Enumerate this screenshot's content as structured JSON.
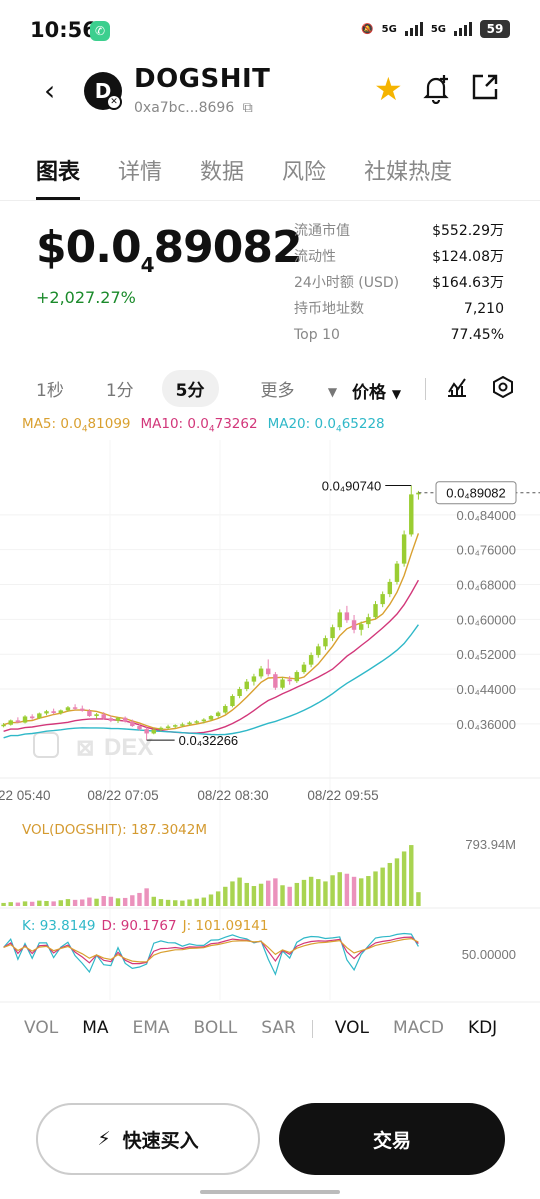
{
  "status_bar": {
    "time": "10:56",
    "battery": "59",
    "net1": "5G",
    "net2": "5G"
  },
  "header": {
    "title": "DOGSHIT",
    "avatar_letter": "D",
    "address": "0xa7bc...8696",
    "icons": [
      "back-icon",
      "copy-icon",
      "star-icon",
      "bell-add-icon",
      "share-icon"
    ],
    "star_color": "#f5b400"
  },
  "tabs": [
    "图表",
    "详情",
    "数据",
    "风险",
    "社媒热度"
  ],
  "price": {
    "prefix": "$0.0",
    "zeros": "4",
    "digits": "89082",
    "change": "+2,027.27%",
    "change_color": "#1a8a2a"
  },
  "stats": [
    {
      "label": "流通市值",
      "value": "$552.29万"
    },
    {
      "label": "流动性",
      "value": "$124.08万"
    },
    {
      "label": "24小时额 (USD)",
      "value": "$164.63万"
    },
    {
      "label": "持币地址数",
      "value": "7,210"
    },
    {
      "label": "Top 10",
      "value": "77.45%"
    }
  ],
  "intervals": [
    "1秒",
    "1分",
    "5分",
    "更多"
  ],
  "price_selector": "价格",
  "ma_legend": {
    "ma5": {
      "label": "MA5:",
      "prefix": "0.0",
      "sub": "4",
      "digits": "81099",
      "color": "#d9a030"
    },
    "ma10": {
      "label": "MA10:",
      "prefix": "0.0",
      "sub": "4",
      "digits": "73262",
      "color": "#d2377a"
    },
    "ma20": {
      "label": "MA20:",
      "prefix": "0.0",
      "sub": "4",
      "digits": "65228",
      "color": "#2fb8c8"
    }
  },
  "chart_data": {
    "type": "candlestick",
    "y_ticks": [
      "0.0₄84000",
      "0.0₄76000",
      "0.0₄68000",
      "0.0₄60000",
      "0.0₄52000",
      "0.0₄44000",
      "0.0₄36000"
    ],
    "ylim": [
      30000,
      92000
    ],
    "x_ticks": [
      "22 05:40",
      "08/22 07:05",
      "08/22 08:30",
      "08/22 09:55"
    ],
    "high_label": "0.0₄90740",
    "high_value": 90740,
    "low_label": "0.0₄32266",
    "low_value": 32266,
    "last_label": "0.0₄89082",
    "last_value": 89082,
    "watermark": "DEX",
    "up_color": "#9acd32",
    "down_color": "#e87fb0",
    "candles": [
      [
        35500,
        36200,
        35200,
        35800
      ],
      [
        35800,
        37000,
        35600,
        36800
      ],
      [
        36800,
        37500,
        36400,
        36300
      ],
      [
        36300,
        38000,
        36100,
        37700
      ],
      [
        37700,
        38200,
        37000,
        37300
      ],
      [
        37300,
        38600,
        37100,
        38400
      ],
      [
        38400,
        39200,
        38000,
        38900
      ],
      [
        38900,
        39500,
        38200,
        38500
      ],
      [
        38500,
        39300,
        38100,
        39100
      ],
      [
        39100,
        40100,
        38800,
        39800
      ],
      [
        39800,
        40500,
        39200,
        39500
      ],
      [
        39500,
        40200,
        38800,
        39000
      ],
      [
        39000,
        39400,
        37600,
        37800
      ],
      [
        37800,
        38500,
        37200,
        38200
      ],
      [
        38200,
        38700,
        37000,
        37300
      ],
      [
        37300,
        37900,
        36400,
        36700
      ],
      [
        36700,
        37600,
        36200,
        37400
      ],
      [
        37400,
        37700,
        36300,
        36500
      ],
      [
        36500,
        37000,
        35300,
        35500
      ],
      [
        35500,
        36100,
        34500,
        34800
      ],
      [
        34800,
        35200,
        32266,
        33800
      ],
      [
        33800,
        35000,
        33600,
        34700
      ],
      [
        34700,
        35400,
        34300,
        35100
      ],
      [
        35100,
        35800,
        34700,
        35400
      ],
      [
        35400,
        35900,
        35000,
        35700
      ],
      [
        35700,
        36300,
        35300,
        35900
      ],
      [
        35900,
        36600,
        35600,
        36300
      ],
      [
        36300,
        36900,
        35900,
        36600
      ],
      [
        36600,
        37300,
        36100,
        37000
      ],
      [
        37000,
        38000,
        36700,
        37800
      ],
      [
        37800,
        38900,
        37400,
        38600
      ],
      [
        38600,
        40500,
        38300,
        40100
      ],
      [
        40100,
        42800,
        39800,
        42400
      ],
      [
        42400,
        44500,
        41900,
        44000
      ],
      [
        44000,
        46300,
        43500,
        45700
      ],
      [
        45700,
        47500,
        44800,
        46900
      ],
      [
        46900,
        49300,
        46400,
        48700
      ],
      [
        48700,
        50800,
        46900,
        47400
      ],
      [
        47400,
        47900,
        43800,
        44300
      ],
      [
        44300,
        46800,
        43900,
        46200
      ],
      [
        46200,
        47000,
        45000,
        45800
      ],
      [
        45800,
        48300,
        45400,
        47900
      ],
      [
        47900,
        50200,
        47500,
        49600
      ],
      [
        49600,
        52400,
        49000,
        51800
      ],
      [
        51800,
        54400,
        51200,
        53800
      ],
      [
        53800,
        56300,
        53000,
        55700
      ],
      [
        55700,
        58800,
        55000,
        58200
      ],
      [
        58200,
        62300,
        57500,
        61600
      ],
      [
        61600,
        63100,
        59200,
        59800
      ],
      [
        59800,
        61000,
        56800,
        57600
      ],
      [
        57600,
        59500,
        56300,
        58900
      ],
      [
        58900,
        61300,
        58000,
        60500
      ],
      [
        60500,
        64200,
        60000,
        63500
      ],
      [
        63500,
        66400,
        62800,
        65800
      ],
      [
        65800,
        69300,
        65100,
        68600
      ],
      [
        68600,
        73400,
        68000,
        72800
      ],
      [
        72800,
        80400,
        72100,
        79500
      ],
      [
        79500,
        90740,
        79000,
        88700
      ],
      [
        88700,
        89500,
        87500,
        89082
      ]
    ],
    "volume_label": "VOL(DOGSHIT): 187.3042M",
    "volume_max_label": "793.94M",
    "volume_max": 793.94,
    "volumes": [
      40,
      50,
      45,
      60,
      55,
      70,
      65,
      60,
      75,
      90,
      80,
      85,
      110,
      95,
      130,
      120,
      100,
      105,
      140,
      170,
      230,
      120,
      90,
      80,
      75,
      70,
      85,
      95,
      110,
      150,
      190,
      250,
      320,
      370,
      300,
      260,
      290,
      330,
      360,
      270,
      250,
      300,
      340,
      380,
      350,
      320,
      400,
      440,
      420,
      380,
      360,
      390,
      450,
      500,
      560,
      620,
      710,
      793,
      180
    ],
    "kdj_legend": {
      "k": "K: 93.8149",
      "d": "D: 90.1767",
      "j": "J: 101.09141"
    },
    "kdj_tick": "50.00000"
  },
  "indicator_tabs": [
    "VOL",
    "MA",
    "EMA",
    "BOLL",
    "SAR",
    "VOL",
    "MACD",
    "KDJ"
  ],
  "buttons": {
    "quick_buy": "快速买入",
    "trade": "交易"
  }
}
